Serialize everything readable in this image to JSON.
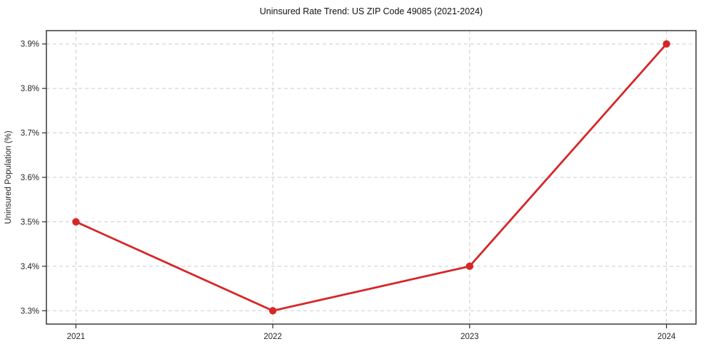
{
  "chart_data": {
    "type": "line",
    "title": "Uninsured Rate Trend: US ZIP Code 49085 (2021-2024)",
    "xlabel": "",
    "ylabel": "Uninsured Population (%)",
    "x": [
      2021,
      2022,
      2023,
      2024
    ],
    "values": [
      3.5,
      3.3,
      3.4,
      3.9
    ],
    "x_tick_labels": [
      "2021",
      "2022",
      "2023",
      "2024"
    ],
    "y_ticks": [
      3.3,
      3.4,
      3.5,
      3.6,
      3.7,
      3.8,
      3.9
    ],
    "y_tick_labels": [
      "3.3%",
      "3.4%",
      "3.5%",
      "3.6%",
      "3.7%",
      "3.8%",
      "3.9%"
    ],
    "xlim": [
      2020.85,
      2024.15
    ],
    "ylim": [
      3.27,
      3.93
    ],
    "grid": true,
    "legend_position": "none",
    "line_color": "#d62728",
    "marker_color": "#d62728",
    "grid_color": "#cbcbcb",
    "axis_color": "#2b2b2b",
    "text_color": "#262626"
  }
}
